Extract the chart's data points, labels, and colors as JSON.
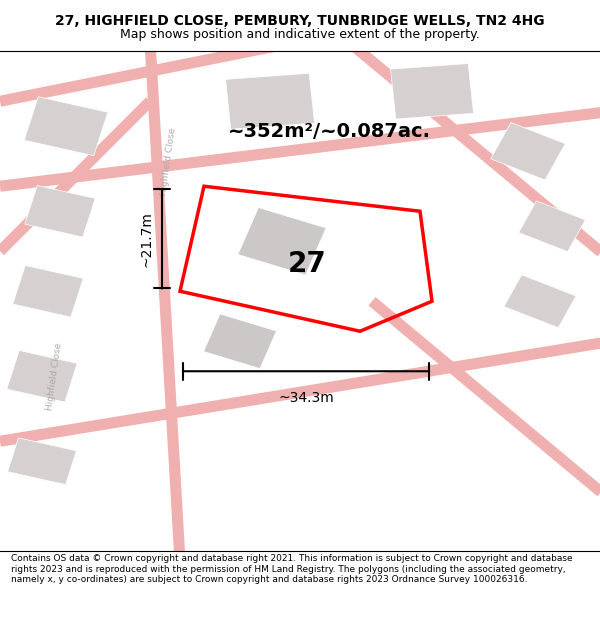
{
  "title_line1": "27, HIGHFIELD CLOSE, PEMBURY, TUNBRIDGE WELLS, TN2 4HG",
  "title_line2": "Map shows position and indicative extent of the property.",
  "area_text": "~352m²/~0.087ac.",
  "label_27": "27",
  "dim_width": "~34.3m",
  "dim_height": "~21.7m",
  "footer_text": "Contains OS data © Crown copyright and database right 2021. This information is subject to Crown copyright and database rights 2023 and is reproduced with the permission of HM Land Registry. The polygons (including the associated geometry, namely x, y co-ordinates) are subject to Crown copyright and database rights 2023 Ordnance Survey 100026316.",
  "map_bg": "#ffffff",
  "road_stroke": "#f0b0b0",
  "road_stroke2": "#e8a8a8",
  "building_color": "#d6d0d0",
  "plot_color": "#ff0000",
  "street_label_color": "#b0a8a8",
  "title_fontsize": 10,
  "subtitle_fontsize": 9,
  "area_fontsize": 14,
  "label27_fontsize": 20,
  "dim_fontsize": 10,
  "footer_fontsize": 6.5
}
